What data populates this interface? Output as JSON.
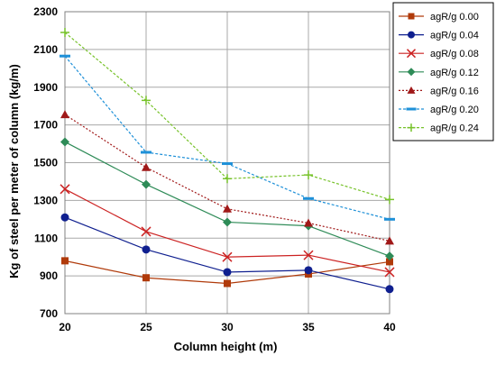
{
  "chart_data": {
    "type": "line",
    "title": "",
    "xlabel": "Column height (m)",
    "ylabel": "Kg of steel per  meter of column (kg/m)",
    "x": [
      20,
      25,
      30,
      35,
      40
    ],
    "xlim": [
      20,
      40
    ],
    "ylim": [
      700,
      2300
    ],
    "x_ticks": [
      20,
      25,
      30,
      35,
      40
    ],
    "y_ticks": [
      700,
      900,
      1100,
      1300,
      1500,
      1700,
      1900,
      2100,
      2300
    ],
    "grid": true,
    "legend_position": "right",
    "series": [
      {
        "name": "agR/g 0.00",
        "values": [
          980,
          890,
          860,
          910,
          975
        ],
        "color": "#b03a0a",
        "marker": "square",
        "dash": "solid"
      },
      {
        "name": "agR/g 0.04",
        "values": [
          1210,
          1040,
          920,
          930,
          830
        ],
        "color": "#0f1f8f",
        "marker": "circle",
        "dash": "solid"
      },
      {
        "name": "agR/g 0.08",
        "values": [
          1360,
          1135,
          1000,
          1010,
          920
        ],
        "color": "#cc2222",
        "marker": "x",
        "dash": "solid"
      },
      {
        "name": "agR/g 0.12",
        "values": [
          1610,
          1385,
          1185,
          1165,
          1005
        ],
        "color": "#2e8b57",
        "marker": "diamond",
        "dash": "solid"
      },
      {
        "name": "agR/g 0.16",
        "values": [
          1755,
          1475,
          1255,
          1180,
          1085
        ],
        "color": "#a01818",
        "marker": "triangle",
        "dash": "dotted"
      },
      {
        "name": "agR/g 0.20",
        "values": [
          2065,
          1555,
          1495,
          1310,
          1200
        ],
        "color": "#1e90d8",
        "marker": "dash",
        "dash": "dashed"
      },
      {
        "name": "agR/g 0.24",
        "values": [
          2190,
          1830,
          1415,
          1435,
          1305
        ],
        "color": "#77c22a",
        "marker": "plus",
        "dash": "dashed"
      }
    ]
  }
}
